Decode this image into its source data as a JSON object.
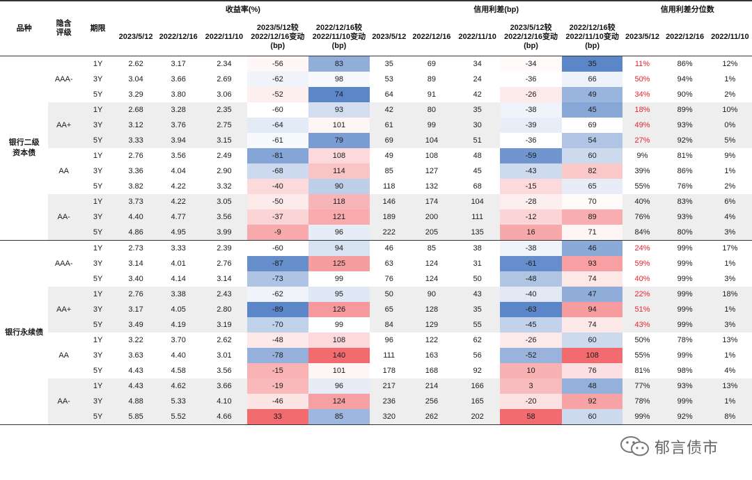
{
  "header": {
    "variety": "品种",
    "rating": "隐含\n评级",
    "term": "期限",
    "group_yield": "收益率(%)",
    "group_spread": "信用利差(bp)",
    "group_pct": "信用利差分位数",
    "d1": "2023/5/12",
    "d2": "2022/12/16",
    "d3": "2022/11/10",
    "chg1": "2023/5/12较\n2022/12/16变动\n(bp)",
    "chg2": "2022/12/16较\n2022/11/10变动\n(bp)"
  },
  "groups": [
    {
      "name": "银行二级\n资本债",
      "ratings": [
        {
          "rating": "AAA-",
          "rows": [
            {
              "term": "1Y",
              "y1": "2.62",
              "y2": "3.17",
              "y3": "2.34",
              "yc1": -56,
              "yc2": 83,
              "s1": "35",
              "s2": "69",
              "s3": "34",
              "sc1": -34,
              "sc2": 35,
              "p1": "11%",
              "p2": "86%",
              "p3": "12%",
              "red": true
            },
            {
              "term": "3Y",
              "y1": "3.04",
              "y2": "3.66",
              "y3": "2.69",
              "yc1": -62,
              "yc2": 98,
              "s1": "53",
              "s2": "89",
              "s3": "24",
              "sc1": -36,
              "sc2": 66,
              "p1": "50%",
              "p2": "94%",
              "p3": "1%",
              "red": true
            },
            {
              "term": "5Y",
              "y1": "3.29",
              "y2": "3.80",
              "y3": "3.06",
              "yc1": -52,
              "yc2": 74,
              "s1": "64",
              "s2": "91",
              "s3": "42",
              "sc1": -26,
              "sc2": 49,
              "p1": "34%",
              "p2": "90%",
              "p3": "2%",
              "red": true
            }
          ]
        },
        {
          "rating": "AA+",
          "rows": [
            {
              "term": "1Y",
              "y1": "2.68",
              "y2": "3.28",
              "y3": "2.35",
              "yc1": -60,
              "yc2": 93,
              "s1": "42",
              "s2": "80",
              "s3": "35",
              "sc1": -38,
              "sc2": 45,
              "p1": "18%",
              "p2": "89%",
              "p3": "10%",
              "red": true
            },
            {
              "term": "3Y",
              "y1": "3.12",
              "y2": "3.76",
              "y3": "2.75",
              "yc1": -64,
              "yc2": 101,
              "s1": "61",
              "s2": "99",
              "s3": "30",
              "sc1": -39,
              "sc2": 69,
              "p1": "49%",
              "p2": "93%",
              "p3": "0%",
              "red": true
            },
            {
              "term": "5Y",
              "y1": "3.33",
              "y2": "3.94",
              "y3": "3.15",
              "yc1": -61,
              "yc2": 79,
              "s1": "69",
              "s2": "104",
              "s3": "51",
              "sc1": -36,
              "sc2": 54,
              "p1": "27%",
              "p2": "92%",
              "p3": "5%",
              "red": true
            }
          ]
        },
        {
          "rating": "AA",
          "rows": [
            {
              "term": "1Y",
              "y1": "2.76",
              "y2": "3.56",
              "y3": "2.49",
              "yc1": -81,
              "yc2": 108,
              "s1": "49",
              "s2": "108",
              "s3": "48",
              "sc1": -59,
              "sc2": 60,
              "p1": "9%",
              "p2": "81%",
              "p3": "9%",
              "red": false
            },
            {
              "term": "3Y",
              "y1": "3.36",
              "y2": "4.04",
              "y3": "2.90",
              "yc1": -68,
              "yc2": 114,
              "s1": "85",
              "s2": "127",
              "s3": "45",
              "sc1": -43,
              "sc2": 82,
              "p1": "39%",
              "p2": "86%",
              "p3": "1%",
              "red": false
            },
            {
              "term": "5Y",
              "y1": "3.82",
              "y2": "4.22",
              "y3": "3.32",
              "yc1": -40,
              "yc2": 90,
              "s1": "118",
              "s2": "132",
              "s3": "68",
              "sc1": -15,
              "sc2": 65,
              "p1": "55%",
              "p2": "76%",
              "p3": "2%",
              "red": false
            }
          ]
        },
        {
          "rating": "AA-",
          "rows": [
            {
              "term": "1Y",
              "y1": "3.73",
              "y2": "4.22",
              "y3": "3.05",
              "yc1": -50,
              "yc2": 118,
              "s1": "146",
              "s2": "174",
              "s3": "104",
              "sc1": -28,
              "sc2": 70,
              "p1": "40%",
              "p2": "83%",
              "p3": "6%",
              "red": false
            },
            {
              "term": "3Y",
              "y1": "4.40",
              "y2": "4.77",
              "y3": "3.56",
              "yc1": -37,
              "yc2": 121,
              "s1": "189",
              "s2": "200",
              "s3": "111",
              "sc1": -12,
              "sc2": 89,
              "p1": "76%",
              "p2": "93%",
              "p3": "4%",
              "red": false
            },
            {
              "term": "5Y",
              "y1": "4.86",
              "y2": "4.95",
              "y3": "3.99",
              "yc1": -9,
              "yc2": 96,
              "s1": "222",
              "s2": "205",
              "s3": "135",
              "sc1": 16,
              "sc2": 71,
              "p1": "84%",
              "p2": "80%",
              "p3": "3%",
              "red": false
            }
          ]
        }
      ]
    },
    {
      "name": "银行永续债",
      "ratings": [
        {
          "rating": "AAA-",
          "rows": [
            {
              "term": "1Y",
              "y1": "2.73",
              "y2": "3.33",
              "y3": "2.39",
              "yc1": -60,
              "yc2": 94,
              "s1": "46",
              "s2": "85",
              "s3": "38",
              "sc1": -38,
              "sc2": 46,
              "p1": "24%",
              "p2": "99%",
              "p3": "17%",
              "red": true
            },
            {
              "term": "3Y",
              "y1": "3.14",
              "y2": "4.01",
              "y3": "2.76",
              "yc1": -87,
              "yc2": 125,
              "s1": "63",
              "s2": "124",
              "s3": "31",
              "sc1": -61,
              "sc2": 93,
              "p1": "59%",
              "p2": "99%",
              "p3": "1%",
              "red": true
            },
            {
              "term": "5Y",
              "y1": "3.40",
              "y2": "4.14",
              "y3": "3.14",
              "yc1": -73,
              "yc2": 99,
              "s1": "76",
              "s2": "124",
              "s3": "50",
              "sc1": -48,
              "sc2": 74,
              "p1": "40%",
              "p2": "99%",
              "p3": "3%",
              "red": true
            }
          ]
        },
        {
          "rating": "AA+",
          "rows": [
            {
              "term": "1Y",
              "y1": "2.76",
              "y2": "3.38",
              "y3": "2.43",
              "yc1": -62,
              "yc2": 95,
              "s1": "50",
              "s2": "90",
              "s3": "43",
              "sc1": -40,
              "sc2": 47,
              "p1": "22%",
              "p2": "99%",
              "p3": "18%",
              "red": true
            },
            {
              "term": "3Y",
              "y1": "3.17",
              "y2": "4.05",
              "y3": "2.80",
              "yc1": -89,
              "yc2": 126,
              "s1": "65",
              "s2": "128",
              "s3": "35",
              "sc1": -63,
              "sc2": 94,
              "p1": "51%",
              "p2": "99%",
              "p3": "1%",
              "red": true
            },
            {
              "term": "5Y",
              "y1": "3.49",
              "y2": "4.19",
              "y3": "3.19",
              "yc1": -70,
              "yc2": 99,
              "s1": "84",
              "s2": "129",
              "s3": "55",
              "sc1": -45,
              "sc2": 74,
              "p1": "43%",
              "p2": "99%",
              "p3": "3%",
              "red": true
            }
          ]
        },
        {
          "rating": "AA",
          "rows": [
            {
              "term": "1Y",
              "y1": "3.22",
              "y2": "3.70",
              "y3": "2.62",
              "yc1": -48,
              "yc2": 108,
              "s1": "96",
              "s2": "122",
              "s3": "62",
              "sc1": -26,
              "sc2": 60,
              "p1": "50%",
              "p2": "78%",
              "p3": "13%",
              "red": false
            },
            {
              "term": "3Y",
              "y1": "3.63",
              "y2": "4.40",
              "y3": "3.01",
              "yc1": -78,
              "yc2": 140,
              "s1": "111",
              "s2": "163",
              "s3": "56",
              "sc1": -52,
              "sc2": 108,
              "p1": "55%",
              "p2": "99%",
              "p3": "1%",
              "red": false
            },
            {
              "term": "5Y",
              "y1": "4.43",
              "y2": "4.58",
              "y3": "3.56",
              "yc1": -15,
              "yc2": 101,
              "s1": "178",
              "s2": "168",
              "s3": "92",
              "sc1": 10,
              "sc2": 76,
              "p1": "81%",
              "p2": "98%",
              "p3": "4%",
              "red": false
            }
          ]
        },
        {
          "rating": "AA-",
          "rows": [
            {
              "term": "1Y",
              "y1": "4.43",
              "y2": "4.62",
              "y3": "3.66",
              "yc1": -19,
              "yc2": 96,
              "s1": "217",
              "s2": "214",
              "s3": "166",
              "sc1": 3,
              "sc2": 48,
              "p1": "77%",
              "p2": "93%",
              "p3": "13%",
              "red": false
            },
            {
              "term": "3Y",
              "y1": "4.88",
              "y2": "5.33",
              "y3": "4.10",
              "yc1": -46,
              "yc2": 124,
              "s1": "236",
              "s2": "256",
              "s3": "165",
              "sc1": -20,
              "sc2": 92,
              "p1": "78%",
              "p2": "99%",
              "p3": "1%",
              "red": false
            },
            {
              "term": "5Y",
              "y1": "5.85",
              "y2": "5.52",
              "y3": "4.66",
              "yc1": 33,
              "yc2": 85,
              "s1": "320",
              "s2": "262",
              "s3": "202",
              "sc1": 58,
              "sc2": 60,
              "p1": "99%",
              "p2": "92%",
              "p3": "8%",
              "red": false
            }
          ]
        }
      ]
    }
  ],
  "watermark": "郁言债市",
  "colors": {
    "blue": "#5b86c8",
    "red": "#f26b6f",
    "neutral": "#ffffff",
    "pct_red": "#e8232e",
    "shade": "#eeeeee"
  }
}
